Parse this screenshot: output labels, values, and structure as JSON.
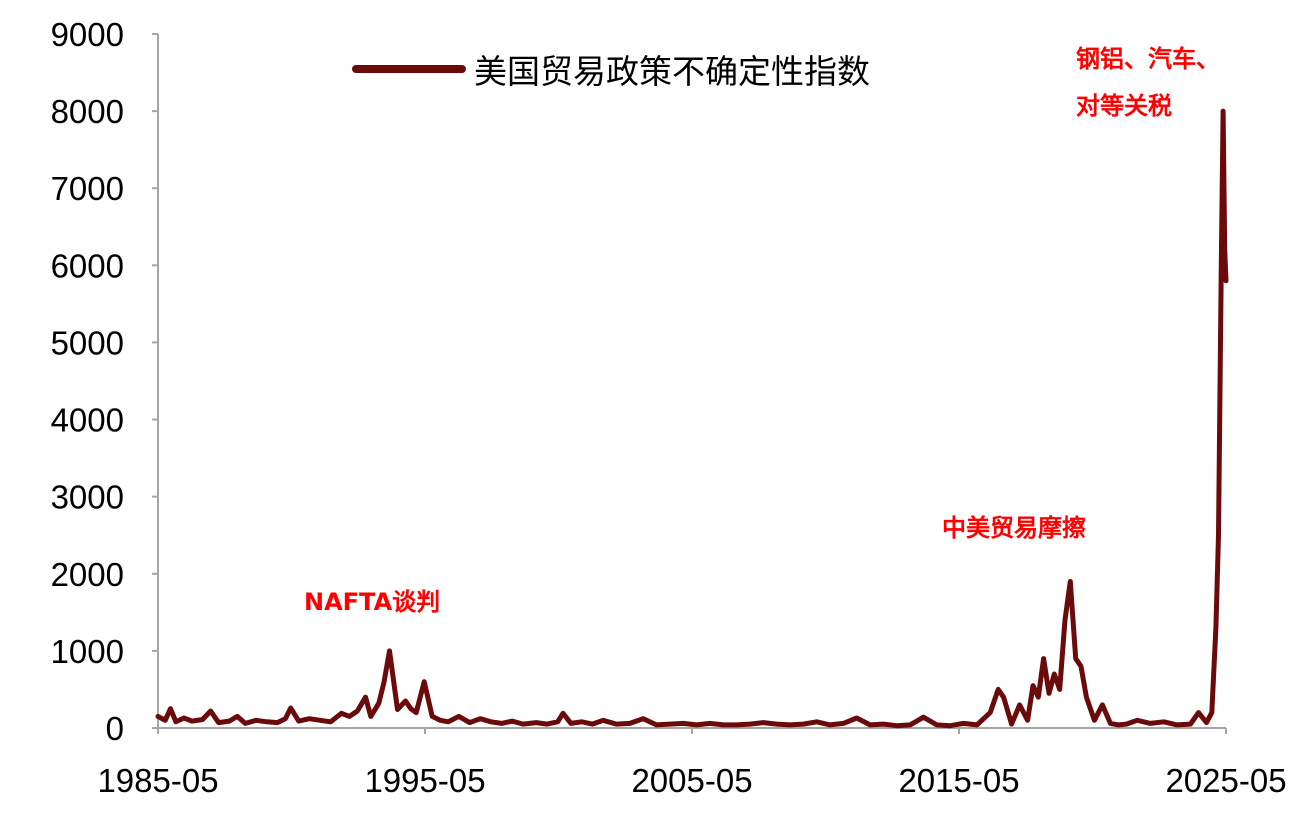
{
  "chart_data": {
    "type": "line",
    "title": "",
    "xlabel": "",
    "ylabel": "",
    "xlim": [
      1985.33,
      2025.33
    ],
    "ylim": [
      0,
      9000
    ],
    "yticks": [
      0,
      1000,
      2000,
      3000,
      4000,
      5000,
      6000,
      7000,
      8000,
      9000
    ],
    "xtick_labels": [
      "1985-05",
      "1995-05",
      "2005-05",
      "2015-05",
      "2025-05"
    ],
    "xtick_values": [
      1985.33,
      1995.33,
      2005.33,
      2015.33,
      2025.33
    ],
    "grid": false,
    "legend_position": "top-center",
    "series": [
      {
        "name": "美国贸易政策不确定性指数",
        "color": "#6b0a0a",
        "x": [
          1985.33,
          1985.6,
          1985.8,
          1986.0,
          1986.3,
          1986.6,
          1987.0,
          1987.3,
          1987.6,
          1988.0,
          1988.3,
          1988.6,
          1989.0,
          1989.4,
          1989.8,
          1990.1,
          1990.3,
          1990.6,
          1991.0,
          1991.4,
          1991.8,
          1992.2,
          1992.5,
          1992.8,
          1993.1,
          1993.3,
          1993.6,
          1993.8,
          1994.0,
          1994.3,
          1994.6,
          1994.8,
          1995.0,
          1995.3,
          1995.6,
          1995.9,
          1996.2,
          1996.6,
          1997.0,
          1997.4,
          1997.8,
          1998.2,
          1998.6,
          1999.0,
          1999.5,
          1999.9,
          2000.3,
          2000.5,
          2000.8,
          2001.2,
          2001.6,
          2002.0,
          2002.5,
          2003.0,
          2003.5,
          2004.0,
          2004.5,
          2005.0,
          2005.5,
          2006.0,
          2006.5,
          2007.0,
          2007.5,
          2008.0,
          2008.5,
          2009.0,
          2009.5,
          2010.0,
          2010.5,
          2011.0,
          2011.5,
          2012.0,
          2012.5,
          2013.0,
          2013.5,
          2014.0,
          2014.5,
          2015.0,
          2015.5,
          2016.0,
          2016.5,
          2016.8,
          2017.0,
          2017.3,
          2017.6,
          2017.9,
          2018.1,
          2018.3,
          2018.5,
          2018.7,
          2018.9,
          2019.1,
          2019.3,
          2019.5,
          2019.7,
          2019.9,
          2020.1,
          2020.4,
          2020.7,
          2021.0,
          2021.3,
          2021.6,
          2022.0,
          2022.5,
          2023.0,
          2023.5,
          2024.0,
          2024.3,
          2024.6,
          2024.8,
          2024.95,
          2025.05,
          2025.15,
          2025.22,
          2025.28,
          2025.33
        ],
        "y": [
          150,
          100,
          250,
          80,
          130,
          90,
          110,
          220,
          70,
          90,
          150,
          60,
          100,
          80,
          70,
          120,
          260,
          90,
          120,
          100,
          80,
          190,
          150,
          220,
          400,
          150,
          320,
          600,
          1000,
          240,
          350,
          250,
          200,
          600,
          150,
          100,
          80,
          150,
          70,
          120,
          80,
          60,
          90,
          50,
          70,
          50,
          80,
          190,
          60,
          80,
          50,
          100,
          50,
          60,
          120,
          40,
          50,
          60,
          40,
          60,
          40,
          40,
          50,
          70,
          50,
          40,
          50,
          80,
          40,
          60,
          130,
          40,
          50,
          30,
          40,
          140,
          40,
          30,
          60,
          40,
          200,
          500,
          400,
          50,
          300,
          100,
          550,
          400,
          900,
          450,
          700,
          500,
          1400,
          1900,
          900,
          800,
          400,
          100,
          300,
          60,
          40,
          50,
          100,
          60,
          80,
          40,
          50,
          200,
          70,
          200,
          1300,
          2500,
          5900,
          8000,
          6200,
          5800
        ]
      }
    ],
    "annotations": [
      {
        "text": "NAFTA谈判",
        "color": "#ff0000"
      },
      {
        "text": "中美贸易摩擦",
        "color": "#ff0000"
      },
      {
        "text": "钢铝、汽车、",
        "color": "#ff0000"
      },
      {
        "text": "对等关税",
        "color": "#ff0000"
      }
    ]
  }
}
